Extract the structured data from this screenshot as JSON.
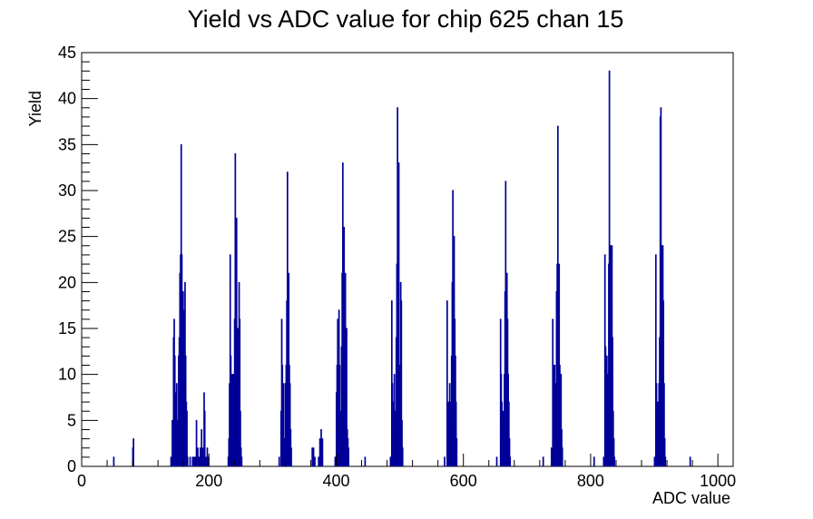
{
  "chart_data": {
    "type": "histogram",
    "title": "Yield vs ADC value for chip 625 chan 15",
    "xlabel": "ADC value",
    "ylabel": "Yield",
    "xlim": [
      0,
      1024
    ],
    "ylim": [
      0,
      45
    ],
    "x_ticks": [
      0,
      200,
      400,
      600,
      800,
      1000
    ],
    "y_ticks": [
      0,
      5,
      10,
      15,
      20,
      25,
      30,
      35,
      40,
      45
    ],
    "grid": false,
    "line_color": "#000099",
    "bins": [
      {
        "x": 50,
        "y": 1
      },
      {
        "x": 80,
        "y": 2
      },
      {
        "x": 81,
        "y": 3
      },
      {
        "x": 140,
        "y": 1
      },
      {
        "x": 142,
        "y": 5
      },
      {
        "x": 144,
        "y": 14
      },
      {
        "x": 145,
        "y": 16
      },
      {
        "x": 146,
        "y": 12
      },
      {
        "x": 147,
        "y": 8
      },
      {
        "x": 148,
        "y": 6
      },
      {
        "x": 149,
        "y": 9
      },
      {
        "x": 150,
        "y": 5
      },
      {
        "x": 151,
        "y": 3
      },
      {
        "x": 152,
        "y": 12
      },
      {
        "x": 153,
        "y": 14
      },
      {
        "x": 154,
        "y": 21
      },
      {
        "x": 155,
        "y": 23
      },
      {
        "x": 156,
        "y": 35
      },
      {
        "x": 157,
        "y": 23
      },
      {
        "x": 158,
        "y": 17
      },
      {
        "x": 159,
        "y": 19
      },
      {
        "x": 160,
        "y": 17
      },
      {
        "x": 161,
        "y": 10
      },
      {
        "x": 162,
        "y": 20
      },
      {
        "x": 163,
        "y": 12
      },
      {
        "x": 164,
        "y": 7
      },
      {
        "x": 165,
        "y": 6
      },
      {
        "x": 166,
        "y": 1
      },
      {
        "x": 170,
        "y": 1
      },
      {
        "x": 174,
        "y": 1
      },
      {
        "x": 176,
        "y": 1
      },
      {
        "x": 178,
        "y": 1
      },
      {
        "x": 180,
        "y": 5
      },
      {
        "x": 182,
        "y": 2
      },
      {
        "x": 184,
        "y": 1
      },
      {
        "x": 186,
        "y": 2
      },
      {
        "x": 188,
        "y": 4
      },
      {
        "x": 190,
        "y": 2
      },
      {
        "x": 192,
        "y": 8
      },
      {
        "x": 193,
        "y": 6
      },
      {
        "x": 195,
        "y": 1
      },
      {
        "x": 197,
        "y": 2
      },
      {
        "x": 199,
        "y": 1
      },
      {
        "x": 230,
        "y": 1
      },
      {
        "x": 231,
        "y": 3
      },
      {
        "x": 232,
        "y": 9
      },
      {
        "x": 233,
        "y": 23
      },
      {
        "x": 234,
        "y": 12
      },
      {
        "x": 235,
        "y": 9
      },
      {
        "x": 236,
        "y": 10
      },
      {
        "x": 237,
        "y": 7
      },
      {
        "x": 238,
        "y": 10
      },
      {
        "x": 239,
        "y": 8
      },
      {
        "x": 240,
        "y": 16
      },
      {
        "x": 241,
        "y": 34
      },
      {
        "x": 242,
        "y": 18
      },
      {
        "x": 243,
        "y": 27
      },
      {
        "x": 244,
        "y": 14
      },
      {
        "x": 245,
        "y": 15
      },
      {
        "x": 246,
        "y": 14
      },
      {
        "x": 247,
        "y": 20
      },
      {
        "x": 248,
        "y": 16
      },
      {
        "x": 249,
        "y": 6
      },
      {
        "x": 250,
        "y": 2
      },
      {
        "x": 251,
        "y": 1
      },
      {
        "x": 310,
        "y": 1
      },
      {
        "x": 313,
        "y": 6
      },
      {
        "x": 314,
        "y": 16
      },
      {
        "x": 315,
        "y": 11
      },
      {
        "x": 316,
        "y": 4
      },
      {
        "x": 317,
        "y": 9
      },
      {
        "x": 318,
        "y": 3
      },
      {
        "x": 319,
        "y": 2
      },
      {
        "x": 320,
        "y": 9
      },
      {
        "x": 321,
        "y": 11
      },
      {
        "x": 322,
        "y": 18
      },
      {
        "x": 323,
        "y": 32
      },
      {
        "x": 324,
        "y": 18
      },
      {
        "x": 325,
        "y": 21
      },
      {
        "x": 326,
        "y": 11
      },
      {
        "x": 327,
        "y": 9
      },
      {
        "x": 328,
        "y": 4
      },
      {
        "x": 329,
        "y": 2
      },
      {
        "x": 362,
        "y": 2
      },
      {
        "x": 364,
        "y": 2
      },
      {
        "x": 366,
        "y": 1
      },
      {
        "x": 372,
        "y": 1
      },
      {
        "x": 374,
        "y": 3
      },
      {
        "x": 376,
        "y": 4
      },
      {
        "x": 378,
        "y": 3
      },
      {
        "x": 398,
        "y": 1
      },
      {
        "x": 400,
        "y": 8
      },
      {
        "x": 401,
        "y": 11
      },
      {
        "x": 402,
        "y": 16
      },
      {
        "x": 403,
        "y": 10
      },
      {
        "x": 404,
        "y": 17
      },
      {
        "x": 405,
        "y": 11
      },
      {
        "x": 406,
        "y": 6
      },
      {
        "x": 407,
        "y": 3
      },
      {
        "x": 408,
        "y": 13
      },
      {
        "x": 409,
        "y": 21
      },
      {
        "x": 410,
        "y": 33
      },
      {
        "x": 411,
        "y": 15
      },
      {
        "x": 412,
        "y": 26
      },
      {
        "x": 413,
        "y": 18
      },
      {
        "x": 414,
        "y": 21
      },
      {
        "x": 415,
        "y": 10
      },
      {
        "x": 416,
        "y": 15
      },
      {
        "x": 417,
        "y": 4
      },
      {
        "x": 418,
        "y": 3
      },
      {
        "x": 419,
        "y": 2
      },
      {
        "x": 445,
        "y": 1
      },
      {
        "x": 485,
        "y": 1
      },
      {
        "x": 487,
        "y": 18
      },
      {
        "x": 488,
        "y": 9
      },
      {
        "x": 489,
        "y": 4
      },
      {
        "x": 490,
        "y": 7
      },
      {
        "x": 491,
        "y": 10
      },
      {
        "x": 492,
        "y": 6
      },
      {
        "x": 493,
        "y": 5
      },
      {
        "x": 494,
        "y": 14
      },
      {
        "x": 495,
        "y": 22
      },
      {
        "x": 496,
        "y": 39
      },
      {
        "x": 497,
        "y": 17
      },
      {
        "x": 498,
        "y": 33
      },
      {
        "x": 499,
        "y": 11
      },
      {
        "x": 500,
        "y": 8
      },
      {
        "x": 501,
        "y": 20
      },
      {
        "x": 502,
        "y": 18
      },
      {
        "x": 503,
        "y": 5
      },
      {
        "x": 504,
        "y": 2
      },
      {
        "x": 570,
        "y": 1
      },
      {
        "x": 574,
        "y": 18
      },
      {
        "x": 575,
        "y": 7
      },
      {
        "x": 576,
        "y": 5
      },
      {
        "x": 577,
        "y": 7
      },
      {
        "x": 578,
        "y": 9
      },
      {
        "x": 579,
        "y": 6
      },
      {
        "x": 580,
        "y": 7
      },
      {
        "x": 581,
        "y": 12
      },
      {
        "x": 582,
        "y": 20
      },
      {
        "x": 583,
        "y": 30
      },
      {
        "x": 584,
        "y": 20
      },
      {
        "x": 585,
        "y": 25
      },
      {
        "x": 586,
        "y": 16
      },
      {
        "x": 587,
        "y": 12
      },
      {
        "x": 588,
        "y": 7
      },
      {
        "x": 589,
        "y": 3
      },
      {
        "x": 652,
        "y": 1
      },
      {
        "x": 658,
        "y": 16
      },
      {
        "x": 659,
        "y": 10
      },
      {
        "x": 660,
        "y": 7
      },
      {
        "x": 661,
        "y": 4
      },
      {
        "x": 662,
        "y": 6
      },
      {
        "x": 663,
        "y": 3
      },
      {
        "x": 664,
        "y": 10
      },
      {
        "x": 665,
        "y": 19
      },
      {
        "x": 666,
        "y": 31
      },
      {
        "x": 667,
        "y": 21
      },
      {
        "x": 668,
        "y": 21
      },
      {
        "x": 669,
        "y": 16
      },
      {
        "x": 670,
        "y": 10
      },
      {
        "x": 671,
        "y": 7
      },
      {
        "x": 672,
        "y": 3
      },
      {
        "x": 673,
        "y": 1
      },
      {
        "x": 725,
        "y": 1
      },
      {
        "x": 738,
        "y": 2
      },
      {
        "x": 740,
        "y": 16
      },
      {
        "x": 741,
        "y": 11
      },
      {
        "x": 742,
        "y": 8
      },
      {
        "x": 743,
        "y": 11
      },
      {
        "x": 744,
        "y": 7
      },
      {
        "x": 745,
        "y": 9
      },
      {
        "x": 746,
        "y": 19
      },
      {
        "x": 747,
        "y": 22
      },
      {
        "x": 748,
        "y": 37
      },
      {
        "x": 749,
        "y": 17
      },
      {
        "x": 750,
        "y": 22
      },
      {
        "x": 751,
        "y": 11
      },
      {
        "x": 752,
        "y": 9
      },
      {
        "x": 753,
        "y": 10
      },
      {
        "x": 754,
        "y": 4
      },
      {
        "x": 755,
        "y": 2
      },
      {
        "x": 805,
        "y": 1
      },
      {
        "x": 820,
        "y": 1
      },
      {
        "x": 822,
        "y": 23
      },
      {
        "x": 823,
        "y": 13
      },
      {
        "x": 824,
        "y": 11
      },
      {
        "x": 825,
        "y": 12
      },
      {
        "x": 826,
        "y": 8
      },
      {
        "x": 827,
        "y": 10
      },
      {
        "x": 828,
        "y": 22
      },
      {
        "x": 829,
        "y": 43
      },
      {
        "x": 830,
        "y": 18
      },
      {
        "x": 831,
        "y": 24
      },
      {
        "x": 832,
        "y": 20
      },
      {
        "x": 833,
        "y": 24
      },
      {
        "x": 834,
        "y": 14
      },
      {
        "x": 835,
        "y": 6
      },
      {
        "x": 836,
        "y": 3
      },
      {
        "x": 837,
        "y": 1
      },
      {
        "x": 900,
        "y": 1
      },
      {
        "x": 902,
        "y": 23
      },
      {
        "x": 903,
        "y": 9
      },
      {
        "x": 904,
        "y": 6
      },
      {
        "x": 905,
        "y": 7
      },
      {
        "x": 906,
        "y": 4
      },
      {
        "x": 907,
        "y": 9
      },
      {
        "x": 908,
        "y": 14
      },
      {
        "x": 909,
        "y": 38
      },
      {
        "x": 910,
        "y": 39
      },
      {
        "x": 911,
        "y": 24
      },
      {
        "x": 912,
        "y": 10
      },
      {
        "x": 913,
        "y": 24
      },
      {
        "x": 914,
        "y": 18
      },
      {
        "x": 915,
        "y": 9
      },
      {
        "x": 916,
        "y": 3
      },
      {
        "x": 917,
        "y": 1
      },
      {
        "x": 956,
        "y": 1
      }
    ]
  }
}
